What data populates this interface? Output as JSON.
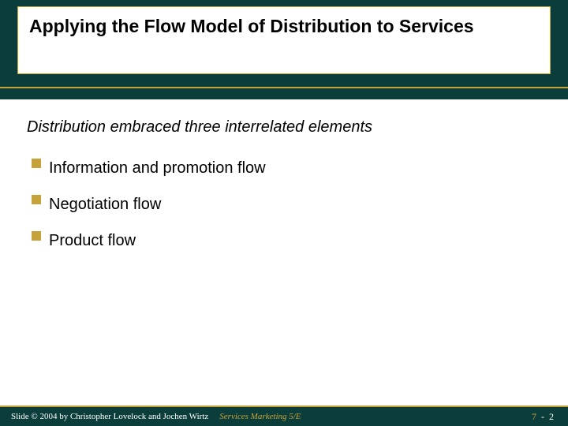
{
  "colors": {
    "header_bg": "#0b3d3a",
    "accent": "#c6a23b",
    "text": "#000000",
    "footer_text": "#ffffff"
  },
  "title": "Applying the Flow Model of Distribution to Services",
  "subtitle": "Distribution embraced three interrelated elements",
  "bullets": [
    "Information and promotion flow",
    "Negotiation flow",
    "Product flow"
  ],
  "footer": {
    "copyright": "Slide © 2004  by Christopher Lovelock and Jochen Wirtz",
    "book": "Services Marketing 5/E",
    "chapter": "7",
    "separator": "-",
    "page": "2"
  }
}
